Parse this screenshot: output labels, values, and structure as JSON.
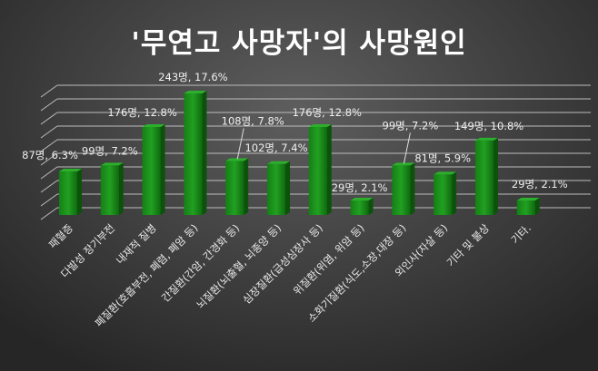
{
  "title": "'무연고 사망자'의 사망원인",
  "chart_data": {
    "type": "bar",
    "title": "'무연고 사망자'의 사망원인",
    "categories": [
      "패혈증",
      "다발성 장기부전",
      "내재적 질병",
      "폐질환(호흡부전, 폐렴, 폐암 등)",
      "간질환(간암, 간경화 등)",
      "뇌질환(뇌출혈, 뇌종양 등)",
      "심장질환(급성심장사 등)",
      "위질환(위염, 위암 등)",
      "소화기질환(식도,소장,대장 등)",
      "외인사(자살 등)",
      "기타 및 불상",
      "기타."
    ],
    "values": [
      87,
      99,
      176,
      243,
      108,
      102,
      176,
      29,
      99,
      81,
      149,
      29
    ],
    "percents": [
      6.3,
      7.2,
      12.8,
      17.6,
      7.8,
      7.4,
      12.8,
      2.1,
      7.2,
      5.9,
      10.8,
      2.1
    ],
    "data_labels": [
      "87명, 6.3%",
      "99명, 7.2%",
      "176명, 12.8%",
      "243명, 17.6%",
      "108명, 7.8%",
      "102명, 7.4%",
      "176명, 12.8%",
      "29명, 2.1%",
      "99명, 7.2%",
      "81명, 5.9%",
      "149명, 10.8%",
      "29명, 2.1%"
    ],
    "ylim": [
      0,
      270
    ],
    "grid": true,
    "style": "3d",
    "bar_color": "#1e8a1e"
  }
}
